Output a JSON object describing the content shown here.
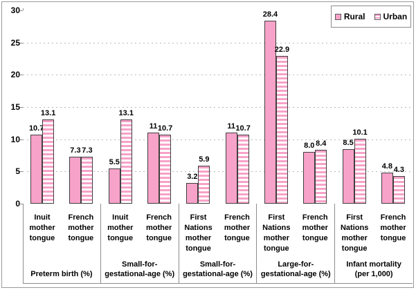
{
  "chart_data": {
    "type": "bar",
    "title": "",
    "xlabel": "",
    "ylabel": "",
    "ylim": [
      0,
      30
    ],
    "yticks": [
      0,
      5,
      10,
      15,
      20,
      25,
      30
    ],
    "grid": "dotted horizontal lines at 5,10,15,20,25",
    "legend_position": "top-right inside box",
    "legend": [
      {
        "label": "Rural",
        "pattern": "solid"
      },
      {
        "label": "Urban",
        "pattern": "stripes"
      }
    ],
    "palette": {
      "bar_pink": "#F7A2C8",
      "bar_border": "#3F3F3F",
      "axis": "#8C8C8C",
      "grid": "#B8B8B8",
      "frame": "#999999",
      "text": "#000000",
      "background": "#FFFFFF"
    },
    "series_names": [
      "Rural",
      "Urban"
    ],
    "groups": [
      {
        "label": "Preterm birth (%)",
        "label_lines": [
          "Preterm birth (%)"
        ],
        "items": [
          {
            "category": "Inuit mother tongue",
            "category_lines": [
              "Inuit",
              "mother",
              "tongue"
            ],
            "rural": 10.7,
            "urban": 13.1,
            "rural_label": "10.7",
            "urban_label": "13.1"
          },
          {
            "category": "French mother tongue",
            "category_lines": [
              "French",
              "mother",
              "tongue"
            ],
            "rural": 7.3,
            "urban": 7.3,
            "rural_label": "7.3",
            "urban_label": "7.3"
          }
        ]
      },
      {
        "label": "Small-for-gestational-age (%)",
        "label_lines": [
          "Small-for-",
          "gestational-age (%)"
        ],
        "items": [
          {
            "category": "Inuit mother tongue",
            "category_lines": [
              "Inuit",
              "mother",
              "tongue"
            ],
            "rural": 5.5,
            "urban": 13.1,
            "rural_label": "5.5",
            "urban_label": "13.1"
          },
          {
            "category": "French mother tongue",
            "category_lines": [
              "French",
              "mother",
              "tongue"
            ],
            "rural": 11,
            "urban": 10.7,
            "rural_label": "11",
            "urban_label": "10.7"
          }
        ]
      },
      {
        "label": "Small-for-gestational-age (%)",
        "label_lines": [
          "Small-for-",
          "gestational-age (%)"
        ],
        "items": [
          {
            "category": "First Nations mother tongue",
            "category_lines": [
              "First",
              "Nations",
              "mother",
              "tongue"
            ],
            "rural": 3.2,
            "urban": 5.9,
            "rural_label": "3.2",
            "urban_label": "5.9"
          },
          {
            "category": "French mother tongue",
            "category_lines": [
              "French",
              "mother",
              "tongue"
            ],
            "rural": 11,
            "urban": 10.7,
            "rural_label": "11",
            "urban_label": "10.7"
          }
        ]
      },
      {
        "label": "Large-for-gestational-age (%)",
        "label_lines": [
          "Large-for-",
          "gestational-age (%)"
        ],
        "items": [
          {
            "category": "First Nations mother tongue",
            "category_lines": [
              "First",
              "Nations",
              "mother",
              "tongue"
            ],
            "rural": 28.4,
            "urban": 22.9,
            "rural_label": "28.4",
            "urban_label": "22.9"
          },
          {
            "category": "French mother tongue",
            "category_lines": [
              "French",
              "mother",
              "tongue"
            ],
            "rural": 8.0,
            "urban": 8.4,
            "rural_label": "8.0",
            "urban_label": "8.4"
          }
        ]
      },
      {
        "label": "Infant mortality (per 1,000)",
        "label_lines": [
          "Infant mortality",
          "(per 1,000)"
        ],
        "items": [
          {
            "category": "First Nations mother tongue",
            "category_lines": [
              "First",
              "Nations",
              "mother",
              "tongue"
            ],
            "rural": 8.5,
            "urban": 10.1,
            "rural_label": "8.5",
            "urban_label": "10.1"
          },
          {
            "category": "French mother tongue",
            "category_lines": [
              "French",
              "mother",
              "tongue"
            ],
            "rural": 4.8,
            "urban": 4.3,
            "rural_label": "4.8",
            "urban_label": "4.3"
          }
        ]
      }
    ]
  }
}
